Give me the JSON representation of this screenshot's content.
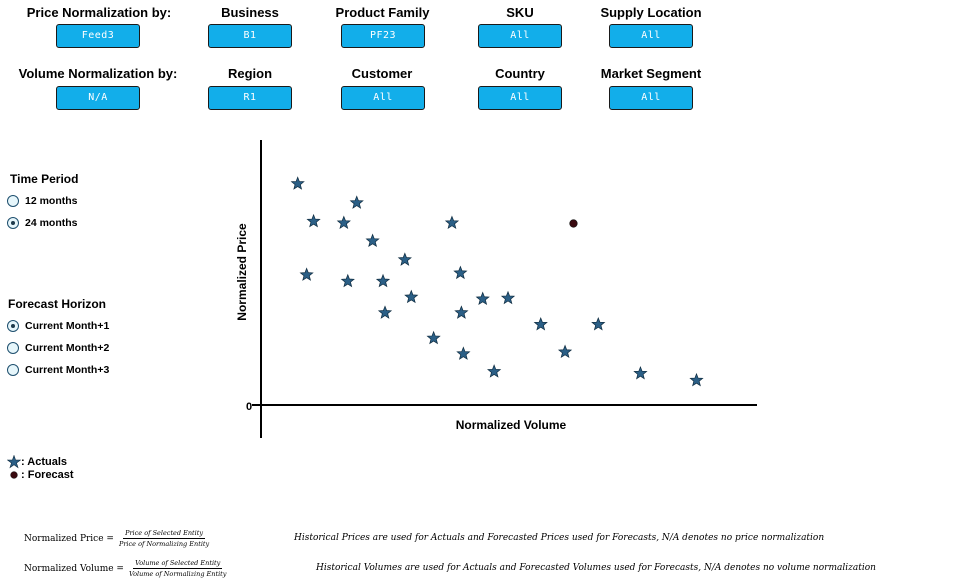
{
  "filters": {
    "price_norm": {
      "label": "Price Normalization by:",
      "value": "Feed3"
    },
    "volume_norm": {
      "label": "Volume Normalization by:",
      "value": "N/A"
    },
    "business": {
      "label": "Business",
      "value": "B1"
    },
    "region": {
      "label": "Region",
      "value": "R1"
    },
    "product_family": {
      "label": "Product Family",
      "value": "PF23"
    },
    "customer": {
      "label": "Customer",
      "value": "All"
    },
    "sku": {
      "label": "SKU",
      "value": "All"
    },
    "country": {
      "label": "Country",
      "value": "All"
    },
    "supply_location": {
      "label": "Supply Location",
      "value": "All"
    },
    "market_segment": {
      "label": "Market Segment",
      "value": "All"
    }
  },
  "time_period": {
    "title": "Time Period",
    "options": [
      {
        "label": "12 months",
        "selected": false
      },
      {
        "label": "24 months",
        "selected": true
      }
    ]
  },
  "forecast_horizon": {
    "title": "Forecast Horizon",
    "options": [
      {
        "label": "Current Month+1",
        "selected": true
      },
      {
        "label": "Current Month+2",
        "selected": false
      },
      {
        "label": "Current Month+3",
        "selected": false
      }
    ]
  },
  "legend": {
    "actuals": ": Actuals",
    "forecast": ": Forecast"
  },
  "formulas": {
    "price": {
      "lhs": "Normalized Price =",
      "num": "Price of Selected Entity",
      "den": "Price of Normalizing Entity"
    },
    "volume": {
      "lhs": "Normalized Volume =",
      "num": "Volume of Selected Entity",
      "den": "Volume of Normalizing Entity"
    }
  },
  "notes": {
    "price": "Historical Prices are used for Actuals and Forecasted Prices used for Forecasts,  N/A denotes no price normalization",
    "volume": "Historical Volumes are used for Actuals and Forecasted Volumes used for Forecasts,  N/A denotes no volume normalization"
  },
  "colors": {
    "button": "#12aeea",
    "actual_star": "#2b5f86",
    "forecast_dot": "#3a0a10"
  },
  "chart_data": {
    "type": "scatter",
    "xlabel": "Normalized Volume",
    "ylabel": "Normalized Price",
    "y_tick_labels": [
      "0"
    ],
    "xlim": [
      0,
      100
    ],
    "ylim": [
      0,
      100
    ],
    "grid": false,
    "series": [
      {
        "name": "Actuals",
        "marker": "star",
        "points": [
          [
            7.4,
            83.5
          ],
          [
            10.6,
            69.3
          ],
          [
            9.2,
            49.1
          ],
          [
            16.7,
            68.7
          ],
          [
            19.3,
            76.3
          ],
          [
            22.5,
            61.9
          ],
          [
            17.5,
            46.7
          ],
          [
            24.6,
            46.7
          ],
          [
            29.0,
            54.8
          ],
          [
            30.3,
            40.7
          ],
          [
            25.0,
            34.8
          ],
          [
            34.8,
            25.2
          ],
          [
            38.5,
            68.7
          ],
          [
            40.2,
            49.8
          ],
          [
            40.4,
            34.8
          ],
          [
            40.8,
            19.3
          ],
          [
            44.7,
            40.0
          ],
          [
            47.0,
            12.6
          ],
          [
            49.8,
            40.3
          ],
          [
            56.4,
            30.4
          ],
          [
            61.3,
            20.0
          ],
          [
            68.0,
            30.4
          ],
          [
            76.5,
            11.9
          ],
          [
            87.8,
            9.3
          ]
        ]
      },
      {
        "name": "Forecast",
        "marker": "circle",
        "points": [
          [
            63.0,
            68.5
          ]
        ]
      }
    ]
  }
}
